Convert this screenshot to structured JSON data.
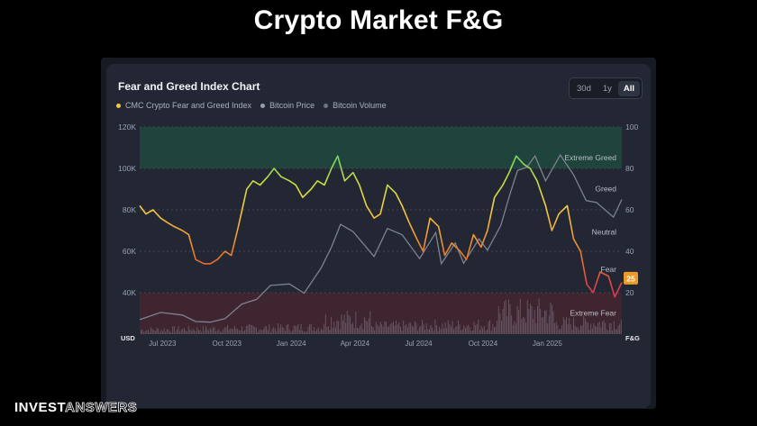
{
  "slide": {
    "title": "Crypto Market F&G",
    "brand_part1": "INVEST",
    "brand_part2": "ANSWERS"
  },
  "chart_header": {
    "title": "Fear and Greed Index Chart",
    "ranges": [
      "30d",
      "1y",
      "All"
    ],
    "active_range": "All"
  },
  "chart_data": {
    "type": "line",
    "title": "Fear and Greed Index Chart",
    "x_tick_labels": [
      "Jul 2023",
      "Oct 2023",
      "Jan 2024",
      "Apr 2024",
      "Jul 2024",
      "Oct 2024",
      "Jan 2025"
    ],
    "x_range": [
      "2023-06-01",
      "2025-04-20"
    ],
    "left_axis": {
      "unit_label": "USD",
      "ticks": [
        "40K",
        "60K",
        "80K",
        "100K",
        "120K"
      ],
      "range": [
        20000,
        120000
      ]
    },
    "right_axis": {
      "unit_label": "F&G",
      "ticks": [
        "20",
        "40",
        "60",
        "80",
        "100"
      ],
      "range": [
        0,
        100
      ]
    },
    "zones": [
      {
        "label": "Extreme Greed",
        "from": 80,
        "to": 100,
        "color": "#1e4a3e"
      },
      {
        "label": "Greed",
        "value": 60
      },
      {
        "label": "Neutral",
        "value": 45
      },
      {
        "label": "Fear",
        "value": 30
      },
      {
        "label": "Extreme Fear",
        "from": 0,
        "to": 20,
        "color": "#4a2530"
      }
    ],
    "current_value": "25",
    "grid": true,
    "series": [
      {
        "name": "CMC Crypto Fear and Greed Index",
        "color": "#f5c842",
        "axis": "right",
        "points": [
          [
            "2023-06-01",
            62
          ],
          [
            "2023-06-10",
            58
          ],
          [
            "2023-06-20",
            60
          ],
          [
            "2023-07-01",
            56
          ],
          [
            "2023-07-10",
            54
          ],
          [
            "2023-07-20",
            52
          ],
          [
            "2023-08-01",
            50
          ],
          [
            "2023-08-10",
            48
          ],
          [
            "2023-08-20",
            36
          ],
          [
            "2023-09-01",
            34
          ],
          [
            "2023-09-10",
            34
          ],
          [
            "2023-09-20",
            36
          ],
          [
            "2023-10-01",
            40
          ],
          [
            "2023-10-10",
            38
          ],
          [
            "2023-10-20",
            52
          ],
          [
            "2023-11-01",
            70
          ],
          [
            "2023-11-10",
            74
          ],
          [
            "2023-11-20",
            72
          ],
          [
            "2023-12-01",
            76
          ],
          [
            "2023-12-10",
            80
          ],
          [
            "2023-12-20",
            76
          ],
          [
            "2024-01-01",
            74
          ],
          [
            "2024-01-10",
            72
          ],
          [
            "2024-01-20",
            66
          ],
          [
            "2024-02-01",
            70
          ],
          [
            "2024-02-10",
            74
          ],
          [
            "2024-02-20",
            72
          ],
          [
            "2024-03-01",
            80
          ],
          [
            "2024-03-10",
            86
          ],
          [
            "2024-03-20",
            74
          ],
          [
            "2024-04-01",
            78
          ],
          [
            "2024-04-10",
            72
          ],
          [
            "2024-04-20",
            62
          ],
          [
            "2024-05-01",
            56
          ],
          [
            "2024-05-10",
            58
          ],
          [
            "2024-05-20",
            72
          ],
          [
            "2024-06-01",
            68
          ],
          [
            "2024-06-10",
            62
          ],
          [
            "2024-06-20",
            54
          ],
          [
            "2024-07-01",
            46
          ],
          [
            "2024-07-10",
            40
          ],
          [
            "2024-07-20",
            56
          ],
          [
            "2024-08-01",
            52
          ],
          [
            "2024-08-10",
            38
          ],
          [
            "2024-08-20",
            44
          ],
          [
            "2024-09-01",
            40
          ],
          [
            "2024-09-10",
            36
          ],
          [
            "2024-09-20",
            48
          ],
          [
            "2024-10-01",
            42
          ],
          [
            "2024-10-10",
            50
          ],
          [
            "2024-10-20",
            66
          ],
          [
            "2024-11-01",
            72
          ],
          [
            "2024-11-10",
            78
          ],
          [
            "2024-11-20",
            86
          ],
          [
            "2024-12-01",
            82
          ],
          [
            "2024-12-10",
            80
          ],
          [
            "2024-12-20",
            74
          ],
          [
            "2025-01-01",
            62
          ],
          [
            "2025-01-10",
            50
          ],
          [
            "2025-01-20",
            58
          ],
          [
            "2025-02-01",
            62
          ],
          [
            "2025-02-10",
            46
          ],
          [
            "2025-02-20",
            40
          ],
          [
            "2025-03-01",
            24
          ],
          [
            "2025-03-10",
            20
          ],
          [
            "2025-03-20",
            30
          ],
          [
            "2025-04-01",
            28
          ],
          [
            "2025-04-10",
            18
          ],
          [
            "2025-04-20",
            25
          ]
        ]
      },
      {
        "name": "Bitcoin Price",
        "color": "#7d8291",
        "axis": "left",
        "points": [
          [
            "2023-06-01",
            27000
          ],
          [
            "2023-07-01",
            30500
          ],
          [
            "2023-08-01",
            29200
          ],
          [
            "2023-08-20",
            26100
          ],
          [
            "2023-09-10",
            25800
          ],
          [
            "2023-10-01",
            27500
          ],
          [
            "2023-10-25",
            34500
          ],
          [
            "2023-11-15",
            36800
          ],
          [
            "2023-12-05",
            43500
          ],
          [
            "2024-01-01",
            44200
          ],
          [
            "2024-01-22",
            39800
          ],
          [
            "2024-02-15",
            51800
          ],
          [
            "2024-03-01",
            62000
          ],
          [
            "2024-03-14",
            73000
          ],
          [
            "2024-04-01",
            69500
          ],
          [
            "2024-05-01",
            57500
          ],
          [
            "2024-05-20",
            71000
          ],
          [
            "2024-06-10",
            68000
          ],
          [
            "2024-07-05",
            56500
          ],
          [
            "2024-07-28",
            69000
          ],
          [
            "2024-08-05",
            54000
          ],
          [
            "2024-08-25",
            64000
          ],
          [
            "2024-09-06",
            54200
          ],
          [
            "2024-09-28",
            66000
          ],
          [
            "2024-10-10",
            60500
          ],
          [
            "2024-10-29",
            72500
          ],
          [
            "2024-11-12",
            88500
          ],
          [
            "2024-11-22",
            99000
          ],
          [
            "2024-12-05",
            100500
          ],
          [
            "2024-12-17",
            106000
          ],
          [
            "2025-01-01",
            94000
          ],
          [
            "2025-01-22",
            106500
          ],
          [
            "2025-02-10",
            97000
          ],
          [
            "2025-02-28",
            84500
          ],
          [
            "2025-03-15",
            83500
          ],
          [
            "2025-04-08",
            76500
          ],
          [
            "2025-04-20",
            85000
          ]
        ]
      },
      {
        "name": "Bitcoin Volume",
        "color": "#6f7482",
        "axis": "volume",
        "points": []
      }
    ]
  }
}
